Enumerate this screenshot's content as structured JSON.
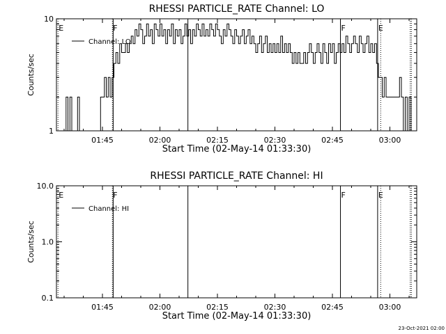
{
  "footer": {
    "timestamp": "23-Oct-2021 02:00"
  },
  "chart_data": [
    {
      "type": "line",
      "title": "RHESSI PARTICLE_RATE Channel: LO",
      "xlabel": "Start Time (02-May-14 01:33:30)",
      "ylabel": "Counts/sec",
      "yscale": "log",
      "ylim": [
        1,
        10
      ],
      "yticks": [
        {
          "v": 1,
          "label": "1"
        },
        {
          "v": 10,
          "label": "10"
        }
      ],
      "xlim": [
        93,
        187
      ],
      "xticks": [
        {
          "v": 105,
          "label": "01:45"
        },
        {
          "v": 120,
          "label": "02:00"
        },
        {
          "v": 135,
          "label": "02:15"
        },
        {
          "v": 150,
          "label": "02:30"
        },
        {
          "v": 165,
          "label": "02:45"
        },
        {
          "v": 180,
          "label": "03:00"
        }
      ],
      "legend": {
        "position": "top-left",
        "entries": [
          "Channel: LO"
        ]
      },
      "markers": [
        {
          "x": 93.4,
          "label": "E",
          "style": "dotted"
        },
        {
          "x": 107.6,
          "label": "F",
          "style": "dotted"
        },
        {
          "x": 107.8,
          "label": "",
          "style": "solid"
        },
        {
          "x": 127.3,
          "label": "",
          "style": "solid"
        },
        {
          "x": 167.1,
          "label": "F",
          "style": "solid"
        },
        {
          "x": 176.8,
          "label": "E",
          "style": "solid"
        },
        {
          "x": 177.6,
          "label": "",
          "style": "dotted"
        },
        {
          "x": 185.3,
          "label": "",
          "style": "dotted"
        },
        {
          "x": 185.6,
          "label": "",
          "style": "dotted"
        }
      ],
      "series": [
        {
          "name": "Channel: LO",
          "x": [
            95,
            95.5,
            96,
            96.5,
            97,
            97.5,
            98,
            98.5,
            99,
            99.5,
            100,
            100.5,
            101,
            101.5,
            102,
            102.5,
            103,
            103.5,
            104,
            104.5,
            105,
            105.5,
            106,
            106.5,
            107,
            107.5,
            108,
            108.5,
            109,
            109.5,
            110,
            110.5,
            111,
            111.5,
            112,
            112.5,
            113,
            113.5,
            114,
            114.5,
            115,
            115.5,
            116,
            116.5,
            117,
            117.5,
            118,
            118.5,
            119,
            119.5,
            120,
            120.5,
            121,
            121.5,
            122,
            122.5,
            123,
            123.5,
            124,
            124.5,
            125,
            125.5,
            126,
            126.5,
            127,
            127.5,
            128,
            128.5,
            129,
            129.5,
            130,
            130.5,
            131,
            131.5,
            132,
            132.5,
            133,
            133.5,
            134,
            134.5,
            135,
            135.5,
            136,
            136.5,
            137,
            137.5,
            138,
            138.5,
            139,
            139.5,
            140,
            140.5,
            141,
            141.5,
            142,
            142.5,
            143,
            143.5,
            144,
            144.5,
            145,
            145.5,
            146,
            146.5,
            147,
            147.5,
            148,
            148.5,
            149,
            149.5,
            150,
            150.5,
            151,
            151.5,
            152,
            152.5,
            153,
            153.5,
            154,
            154.5,
            155,
            155.5,
            156,
            156.5,
            157,
            157.5,
            158,
            158.5,
            159,
            159.5,
            160,
            160.5,
            161,
            161.5,
            162,
            162.5,
            163,
            163.5,
            164,
            164.5,
            165,
            165.5,
            166,
            166.5,
            167,
            167.5,
            168,
            168.5,
            169,
            169.5,
            170,
            170.5,
            171,
            171.5,
            172,
            172.5,
            173,
            173.5,
            174,
            174.5,
            175,
            175.5,
            176,
            176.5,
            177,
            177.5,
            178,
            178.5,
            179,
            179.5,
            180,
            180.5,
            181,
            181.5,
            182,
            182.5,
            183,
            183.5,
            184,
            184.5,
            185,
            185.5
          ],
          "values": [
            1,
            2,
            1,
            2,
            1,
            1,
            1,
            2,
            1,
            1,
            1,
            1,
            1,
            1,
            1,
            1,
            1,
            1,
            1,
            2,
            2,
            3,
            2,
            3,
            2,
            3,
            4,
            5,
            4,
            6,
            5,
            5,
            6,
            5,
            6,
            7,
            6,
            8,
            7,
            9,
            8,
            6,
            7,
            9,
            7,
            8,
            6,
            9,
            8,
            7,
            9,
            7,
            8,
            6,
            8,
            7,
            9,
            6,
            8,
            7,
            8,
            6,
            7,
            9,
            7,
            8,
            6,
            8,
            7,
            9,
            8,
            7,
            9,
            7,
            8,
            7,
            9,
            8,
            7,
            9,
            8,
            7,
            6,
            8,
            7,
            9,
            8,
            7,
            6,
            8,
            7,
            6,
            7,
            8,
            6,
            7,
            8,
            6,
            7,
            6,
            5,
            6,
            7,
            5,
            6,
            7,
            5,
            6,
            5,
            6,
            5,
            6,
            5,
            7,
            5,
            6,
            5,
            6,
            5,
            4,
            5,
            4,
            5,
            4,
            4,
            5,
            4,
            5,
            6,
            5,
            4,
            5,
            6,
            5,
            4,
            6,
            5,
            4,
            6,
            5,
            6,
            4,
            5,
            6,
            5,
            6,
            5,
            7,
            6,
            5,
            6,
            7,
            6,
            5,
            7,
            6,
            5,
            6,
            7,
            5,
            6,
            5,
            6,
            4,
            3,
            3,
            2,
            3,
            2,
            2,
            2,
            2,
            2,
            2,
            2,
            3,
            2,
            1,
            2,
            1,
            2,
            1
          ]
        }
      ]
    },
    {
      "type": "line",
      "title": "RHESSI PARTICLE_RATE Channel: HI",
      "xlabel": "Start Time (02-May-14 01:33:30)",
      "ylabel": "Counts/sec",
      "yscale": "log",
      "ylim": [
        0.1,
        10
      ],
      "yticks": [
        {
          "v": 0.1,
          "label": "0.1"
        },
        {
          "v": 1,
          "label": "1.0"
        },
        {
          "v": 10,
          "label": "10.0"
        }
      ],
      "xlim": [
        93,
        187
      ],
      "xticks": [
        {
          "v": 105,
          "label": "01:45"
        },
        {
          "v": 120,
          "label": "02:00"
        },
        {
          "v": 135,
          "label": "02:15"
        },
        {
          "v": 150,
          "label": "02:30"
        },
        {
          "v": 165,
          "label": "02:45"
        },
        {
          "v": 180,
          "label": "03:00"
        }
      ],
      "legend": {
        "position": "top-left",
        "entries": [
          "Channel: HI"
        ]
      },
      "markers": [
        {
          "x": 93.4,
          "label": "E",
          "style": "dotted"
        },
        {
          "x": 107.6,
          "label": "F",
          "style": "dotted"
        },
        {
          "x": 107.8,
          "label": "",
          "style": "solid"
        },
        {
          "x": 127.3,
          "label": "",
          "style": "solid"
        },
        {
          "x": 167.1,
          "label": "F",
          "style": "solid"
        },
        {
          "x": 176.8,
          "label": "E",
          "style": "solid"
        },
        {
          "x": 177.6,
          "label": "",
          "style": "dotted"
        },
        {
          "x": 185.3,
          "label": "",
          "style": "dotted"
        },
        {
          "x": 185.6,
          "label": "",
          "style": "dotted"
        }
      ],
      "series": [
        {
          "name": "Channel: HI",
          "x": [],
          "values": []
        }
      ]
    }
  ]
}
